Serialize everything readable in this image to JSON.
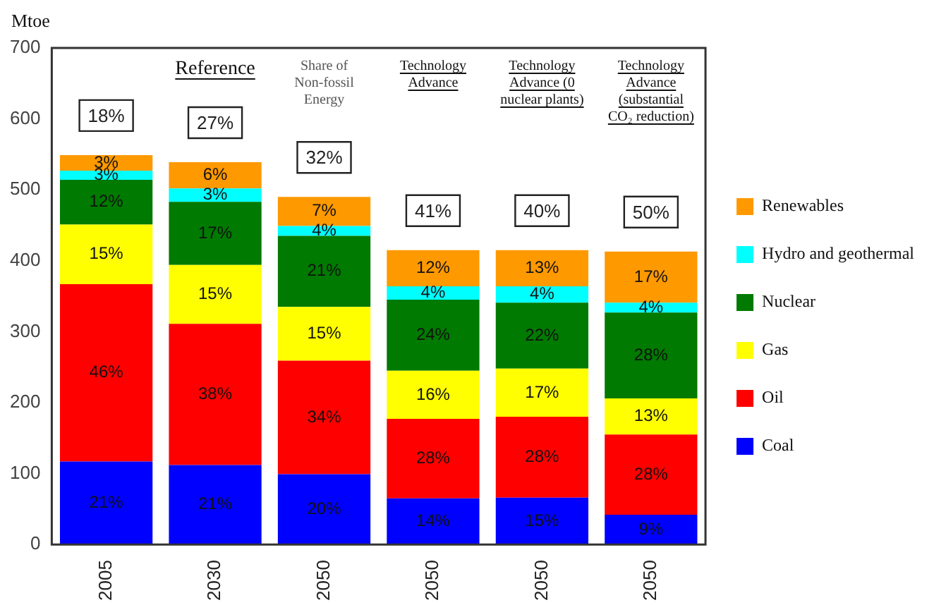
{
  "chart_data": {
    "type": "bar",
    "stacked": true,
    "ylabel": "Mtoe",
    "categories": [
      "2005",
      "2030",
      "2050",
      "2050",
      "2050",
      "2050"
    ],
    "series": [
      {
        "name": "Coal",
        "color": "#0000ff",
        "values": [
          117,
          112,
          99,
          65,
          66,
          42
        ]
      },
      {
        "name": "Oil",
        "color": "#ff0000",
        "values": [
          250,
          199,
          160,
          112,
          114,
          113
        ]
      },
      {
        "name": "Gas",
        "color": "#ffff00",
        "values": [
          84,
          83,
          76,
          68,
          68,
          51
        ]
      },
      {
        "name": "Nuclear",
        "color": "#007a00",
        "values": [
          63,
          89,
          100,
          100,
          93,
          121
        ]
      },
      {
        "name": "Hydro and geothermal",
        "color": "#00ffff",
        "values": [
          13,
          19,
          14,
          19,
          23,
          14
        ]
      },
      {
        "name": "Renewables",
        "color": "#ff9900",
        "values": [
          22,
          37,
          41,
          51,
          51,
          72
        ]
      }
    ],
    "ylim": [
      0,
      700
    ],
    "yticks": [
      0,
      100,
      200,
      300,
      400,
      500,
      600,
      700
    ],
    "grid": false,
    "legend": "right",
    "annotations": [
      "Reference",
      "Share of Non-fossil Energy",
      "Technology Advance",
      "Technology Advance (0 nuclear plants)",
      "Technology Advance (substantial CO₂ reduction)",
      "18%",
      "27%",
      "32%",
      "41%",
      "40%",
      "50%",
      "21%",
      "21%",
      "20%",
      "14%",
      "15%",
      "9%",
      "46%",
      "38%",
      "34%",
      "28%",
      "28%",
      "28%",
      "15%",
      "15%",
      "15%",
      "16%",
      "17%",
      "13%",
      "12%",
      "17%",
      "21%",
      "24%",
      "22%",
      "28%",
      "3%",
      "3%",
      "4%",
      "4%",
      "4%",
      "4%",
      "3%",
      "6%",
      "7%",
      "12%",
      "13%",
      "17%"
    ]
  }
}
